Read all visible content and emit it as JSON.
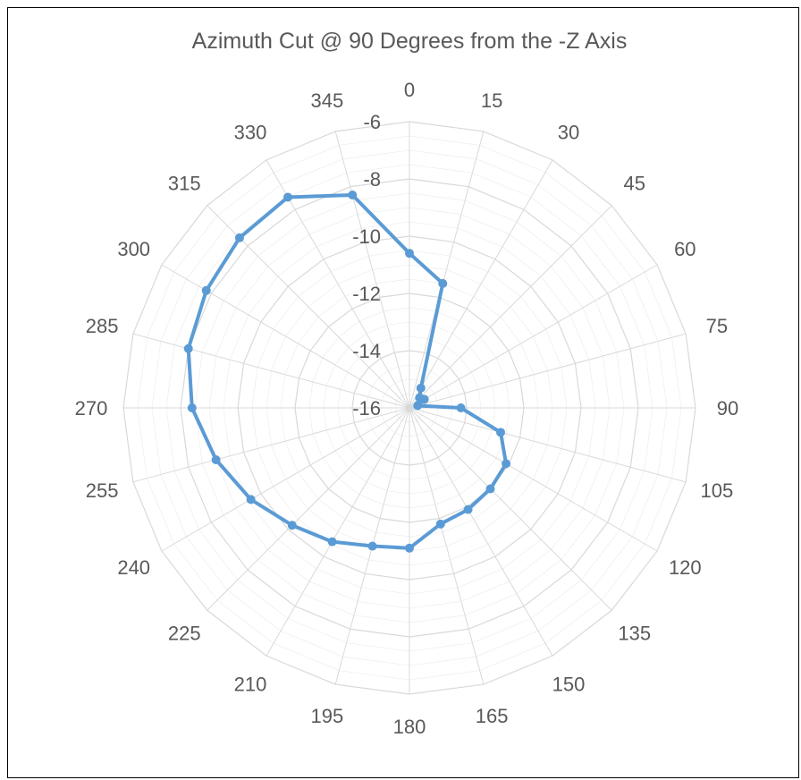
{
  "chart_data": {
    "type": "radar",
    "title": "Azimuth Cut @ 90 Degrees from the -Z Axis",
    "categories": [
      "0",
      "15",
      "30",
      "45",
      "60",
      "75",
      "90",
      "105",
      "120",
      "135",
      "150",
      "165",
      "180",
      "195",
      "210",
      "225",
      "240",
      "255",
      "270",
      "285",
      "300",
      "315",
      "330",
      "345"
    ],
    "radial_ticks": [
      "-6",
      "-8",
      "-10",
      "-12",
      "-14",
      "-16"
    ],
    "rlim": [
      -16,
      -6
    ],
    "grid": true,
    "legend": "none",
    "colors": {
      "series": "#5B9BD5",
      "grid": "#D9D9D9",
      "text": "#595959"
    },
    "series": [
      {
        "values": [
          -10.6,
          -11.5,
          -15.2,
          -15.5,
          -15.4,
          -15.7,
          -14.2,
          -12.7,
          -12.1,
          -12.0,
          -11.9,
          -11.8,
          -11.1,
          -11.0,
          -10.6,
          -10.2,
          -9.6,
          -9.0,
          -8.4,
          -8.0,
          -7.8,
          -7.6,
          -7.5,
          -8.3
        ]
      }
    ]
  }
}
